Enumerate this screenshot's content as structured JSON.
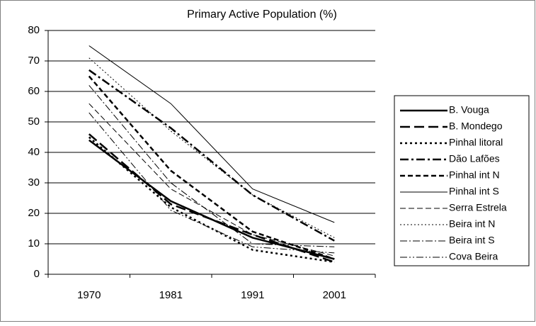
{
  "chart_data": {
    "type": "line",
    "title": "Primary Active Population (%)",
    "categories": [
      "1970",
      "1981",
      "1991",
      "2001"
    ],
    "ylim": [
      0,
      80
    ],
    "yticks": [
      0,
      10,
      20,
      30,
      40,
      50,
      60,
      70,
      80
    ],
    "grid": true,
    "series": [
      {
        "name": "B. Vouga",
        "color": "#000000",
        "dash": "none",
        "width": 2.5,
        "values": [
          44,
          24,
          12,
          5
        ]
      },
      {
        "name": "B. Mondego",
        "color": "#000000",
        "dash": "14 6",
        "width": 2.5,
        "values": [
          46,
          23,
          13,
          4
        ]
      },
      {
        "name": "Pinhal litoral",
        "color": "#000000",
        "dash": "3 4",
        "width": 2.5,
        "values": [
          45,
          22,
          8,
          4
        ]
      },
      {
        "name": "Dão Lafões",
        "color": "#000000",
        "dash": "12 4 3 4",
        "width": 2.5,
        "values": [
          67,
          48,
          26,
          11
        ]
      },
      {
        "name": "Pinhal int N",
        "color": "#000000",
        "dash": "7 4",
        "width": 2.5,
        "values": [
          65,
          34,
          14,
          5
        ]
      },
      {
        "name": "Pinhal int S",
        "color": "#000000",
        "dash": "none",
        "width": 1,
        "values": [
          75,
          56,
          28,
          17
        ]
      },
      {
        "name": "Serra Estrela",
        "color": "#000000",
        "dash": "8 4",
        "width": 1,
        "values": [
          56,
          28,
          13,
          6
        ]
      },
      {
        "name": "Beira int N",
        "color": "#000000",
        "dash": "2 3",
        "width": 1,
        "values": [
          71,
          47,
          26,
          12
        ]
      },
      {
        "name": "Beira int S",
        "color": "#000000",
        "dash": "10 3 2 3",
        "width": 1,
        "values": [
          62,
          30,
          10,
          9
        ]
      },
      {
        "name": "Cova Beira",
        "color": "#000000",
        "dash": "10 3 2 3 2 3",
        "width": 1,
        "values": [
          53,
          21,
          9,
          7
        ]
      }
    ]
  }
}
